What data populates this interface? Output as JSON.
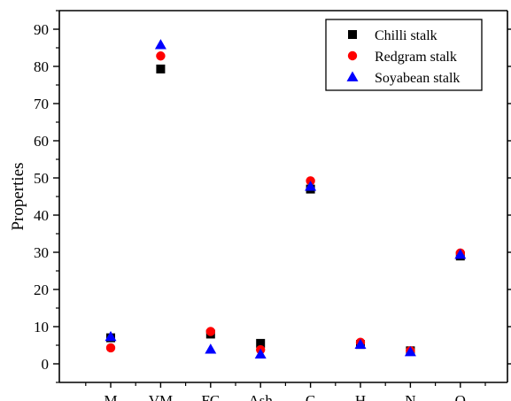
{
  "chart_data": {
    "type": "scatter",
    "title": "",
    "xlabel": "",
    "ylabel": "Properties",
    "categories": [
      "M",
      "VM",
      "FC",
      "Ash",
      "C",
      "H",
      "N",
      "O"
    ],
    "ylim": [
      -5,
      95
    ],
    "yticks": [
      0,
      10,
      20,
      30,
      40,
      50,
      60,
      70,
      80,
      90
    ],
    "grid": false,
    "legend_position": "top-right",
    "series": [
      {
        "name": "Chilli stalk",
        "marker": "square",
        "color": "#000000",
        "values": [
          7.0,
          79.3,
          8.0,
          5.5,
          47.0,
          5.2,
          3.5,
          29.0
        ]
      },
      {
        "name": "Redgram stalk",
        "marker": "circle",
        "color": "#ff0000",
        "values": [
          4.3,
          82.8,
          8.7,
          3.8,
          49.2,
          5.8,
          3.5,
          29.8
        ]
      },
      {
        "name": "Soyabean stalk",
        "marker": "triangle",
        "color": "#0000ff",
        "values": [
          7.3,
          85.8,
          3.9,
          2.6,
          47.7,
          5.2,
          3.2,
          29.4
        ]
      }
    ]
  }
}
